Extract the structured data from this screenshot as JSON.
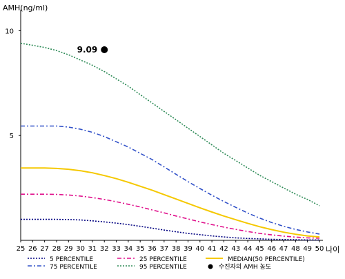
{
  "chart_data": {
    "type": "line",
    "ylabel": "AMH(ng/ml)",
    "xlabel": "나이",
    "x": [
      25,
      26,
      27,
      28,
      29,
      30,
      31,
      32,
      33,
      34,
      35,
      36,
      37,
      38,
      39,
      40,
      41,
      42,
      43,
      44,
      45,
      46,
      47,
      48,
      49,
      50
    ],
    "x_tick_labels": [
      "25",
      "26",
      "27",
      "28",
      "29",
      "30",
      "31",
      "32",
      "33",
      "34",
      "35",
      "36",
      "37",
      "38",
      "39",
      "40",
      "41",
      "42",
      "43",
      "44",
      "45",
      "46",
      "47",
      "48",
      "49",
      "50"
    ],
    "xlim": [
      25,
      50
    ],
    "ylim": [
      0,
      11
    ],
    "y_ticks": [
      5,
      10
    ],
    "y_tick_labels": [
      "5",
      "10"
    ],
    "grid": false,
    "legend_position": "bottom",
    "series": [
      {
        "name": "5 PERCENTILE",
        "color": "#000080",
        "style": "dotted",
        "values": [
          1.0,
          1.0,
          1.0,
          1.0,
          0.99,
          0.97,
          0.93,
          0.88,
          0.82,
          0.75,
          0.67,
          0.58,
          0.49,
          0.41,
          0.33,
          0.27,
          0.21,
          0.16,
          0.12,
          0.09,
          0.07,
          0.05,
          0.04,
          0.03,
          0.02,
          0.02
        ]
      },
      {
        "name": "25 PERCENTILE",
        "color": "#e0108c",
        "style": "dashdot",
        "values": [
          2.2,
          2.2,
          2.2,
          2.19,
          2.16,
          2.11,
          2.04,
          1.95,
          1.84,
          1.72,
          1.59,
          1.45,
          1.31,
          1.16,
          1.02,
          0.88,
          0.75,
          0.63,
          0.52,
          0.42,
          0.33,
          0.26,
          0.2,
          0.15,
          0.12,
          0.1
        ]
      },
      {
        "name": "MEDIAN(50 PERCENTILE)",
        "color": "#f5c800",
        "style": "solid",
        "values": [
          3.45,
          3.45,
          3.45,
          3.43,
          3.39,
          3.32,
          3.22,
          3.09,
          2.94,
          2.77,
          2.58,
          2.39,
          2.18,
          1.97,
          1.76,
          1.55,
          1.35,
          1.16,
          0.98,
          0.81,
          0.65,
          0.51,
          0.39,
          0.29,
          0.21,
          0.16
        ]
      },
      {
        "name": "75 PERCENTILE",
        "color": "#3050c8",
        "style": "dashdot",
        "values": [
          5.45,
          5.45,
          5.45,
          5.45,
          5.4,
          5.3,
          5.15,
          4.95,
          4.7,
          4.45,
          4.15,
          3.85,
          3.5,
          3.15,
          2.8,
          2.47,
          2.15,
          1.85,
          1.57,
          1.3,
          1.06,
          0.85,
          0.67,
          0.52,
          0.4,
          0.3
        ]
      },
      {
        "name": "95 PERCENTILE",
        "color": "#2e8b57",
        "style": "dotted",
        "values": [
          9.4,
          9.3,
          9.2,
          9.05,
          8.85,
          8.6,
          8.35,
          8.05,
          7.7,
          7.35,
          6.95,
          6.55,
          6.15,
          5.75,
          5.35,
          4.95,
          4.55,
          4.15,
          3.8,
          3.45,
          3.1,
          2.8,
          2.5,
          2.2,
          1.95,
          1.65
        ]
      }
    ],
    "highlight_point": {
      "name": "수진자의 AMH 농도",
      "x": 32,
      "y": 9.09,
      "label": "9.09",
      "color": "#000000"
    }
  }
}
